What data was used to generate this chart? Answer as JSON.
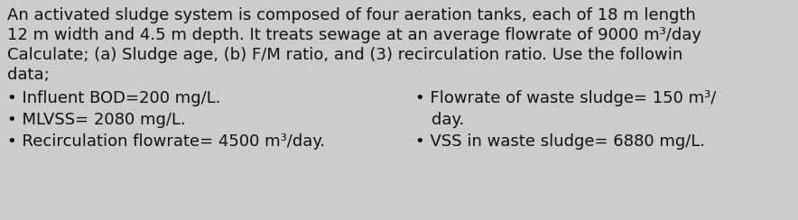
{
  "background_color": "#cccccc",
  "line1": "An activated sludge system is composed of four aeration tanks, each of 18 m length",
  "line2": "12 m width and 4.5 m depth. It treats sewage at an average flowrate of 9000 m³/day",
  "line3": "Calculate; (a) Sludge age, (b) F/M ratio, and (3) recirculation ratio. Use the followin",
  "line4": "data;",
  "bullet_left_1": "Influent BOD=200 mg/L.",
  "bullet_left_2": "MLVSS= 2080 mg/L.",
  "bullet_left_3": "Recirculation flowrate= 4500 m³/day.",
  "bullet_right_1a": "Flowrate of waste sludge= 150 m³/",
  "bullet_right_1b": "day.",
  "bullet_right_2": "VSS in waste sludge= 6880 mg/L.",
  "font_size": 13.0,
  "font_color": "#111111",
  "bullet_char": "•"
}
